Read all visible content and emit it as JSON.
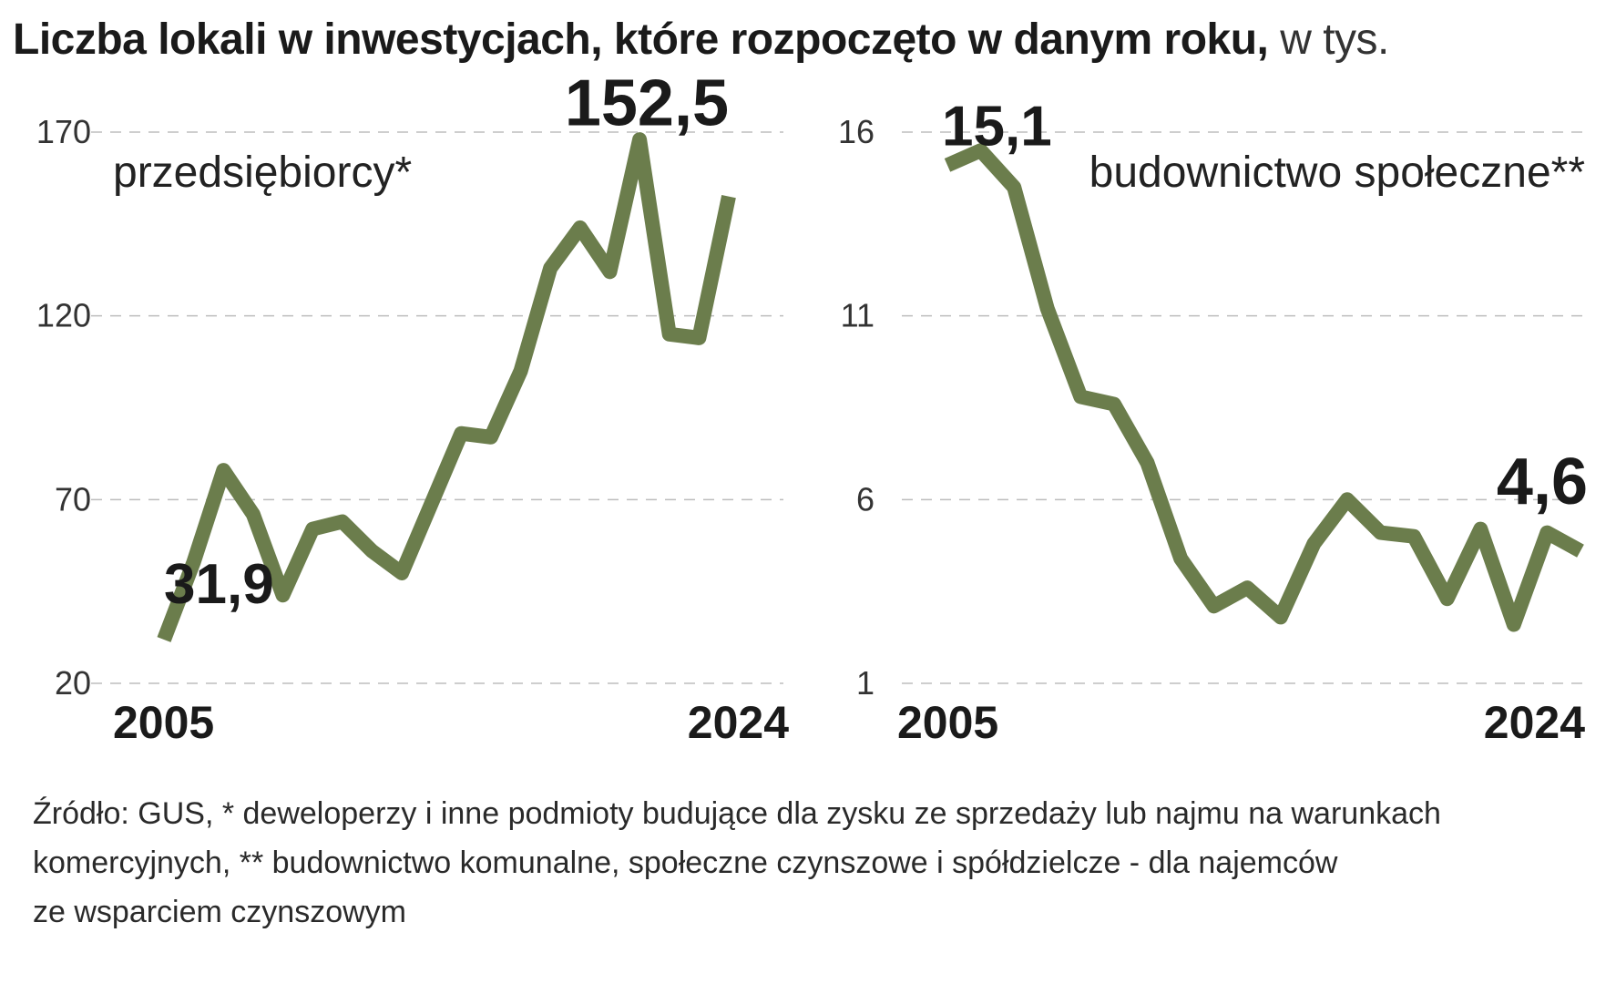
{
  "header": {
    "title_main": "Liczba lokali w inwestycjach, które rozpoczęto w danym roku,",
    "title_unit": "w tys."
  },
  "colors": {
    "line": "#6b7d4c",
    "grid": "#bdbdbd",
    "text": "#1a1a1a"
  },
  "chart_data": [
    {
      "type": "line",
      "series_label": "przedsiębiorcy*",
      "x": [
        2005,
        2006,
        2007,
        2008,
        2009,
        2010,
        2011,
        2012,
        2013,
        2014,
        2015,
        2016,
        2017,
        2018,
        2019,
        2020,
        2021,
        2022,
        2023,
        2024
      ],
      "values": [
        31.9,
        53,
        78,
        66,
        44,
        62,
        64,
        56,
        50,
        69,
        88,
        87,
        105,
        133,
        144,
        132,
        168,
        115,
        114,
        152.5
      ],
      "ylim": [
        20,
        170
      ],
      "yticks": [
        "170",
        "120",
        "70",
        "20"
      ],
      "ytick_values": [
        170,
        120,
        70,
        20
      ],
      "xtick_first": "2005",
      "xtick_last": "2024",
      "annotations": [
        {
          "text": "31,9",
          "x": 2005
        },
        {
          "text": "152,5",
          "x": 2024
        }
      ],
      "grid": true
    },
    {
      "type": "line",
      "series_label": "budownictwo społeczne**",
      "x": [
        2005,
        2006,
        2007,
        2008,
        2009,
        2010,
        2011,
        2012,
        2013,
        2014,
        2015,
        2016,
        2017,
        2018,
        2019,
        2020,
        2021,
        2022,
        2023,
        2024
      ],
      "values": [
        15.1,
        15.5,
        14.5,
        11.2,
        8.8,
        8.6,
        7.0,
        4.4,
        3.1,
        3.6,
        2.8,
        4.8,
        6.0,
        5.1,
        5.0,
        3.3,
        5.2,
        2.6,
        5.1,
        4.6
      ],
      "ylim": [
        1,
        16
      ],
      "yticks": [
        "16",
        "11",
        "6",
        "1"
      ],
      "ytick_values": [
        16,
        11,
        6,
        1
      ],
      "xtick_first": "2005",
      "xtick_last": "2024",
      "annotations": [
        {
          "text": "15,1",
          "x": 2005
        },
        {
          "text": "4,6",
          "x": 2024
        }
      ],
      "grid": true
    }
  ],
  "footnote": [
    "Źródło: GUS, * deweloperzy i inne podmioty budujące dla zysku ze sprzedaży lub najmu na warunkach",
    "komercyjnych, ** budownictwo komunalne, społeczne czynszowe i spółdzielcze - dla najemców",
    "ze wsparciem czynszowym"
  ]
}
